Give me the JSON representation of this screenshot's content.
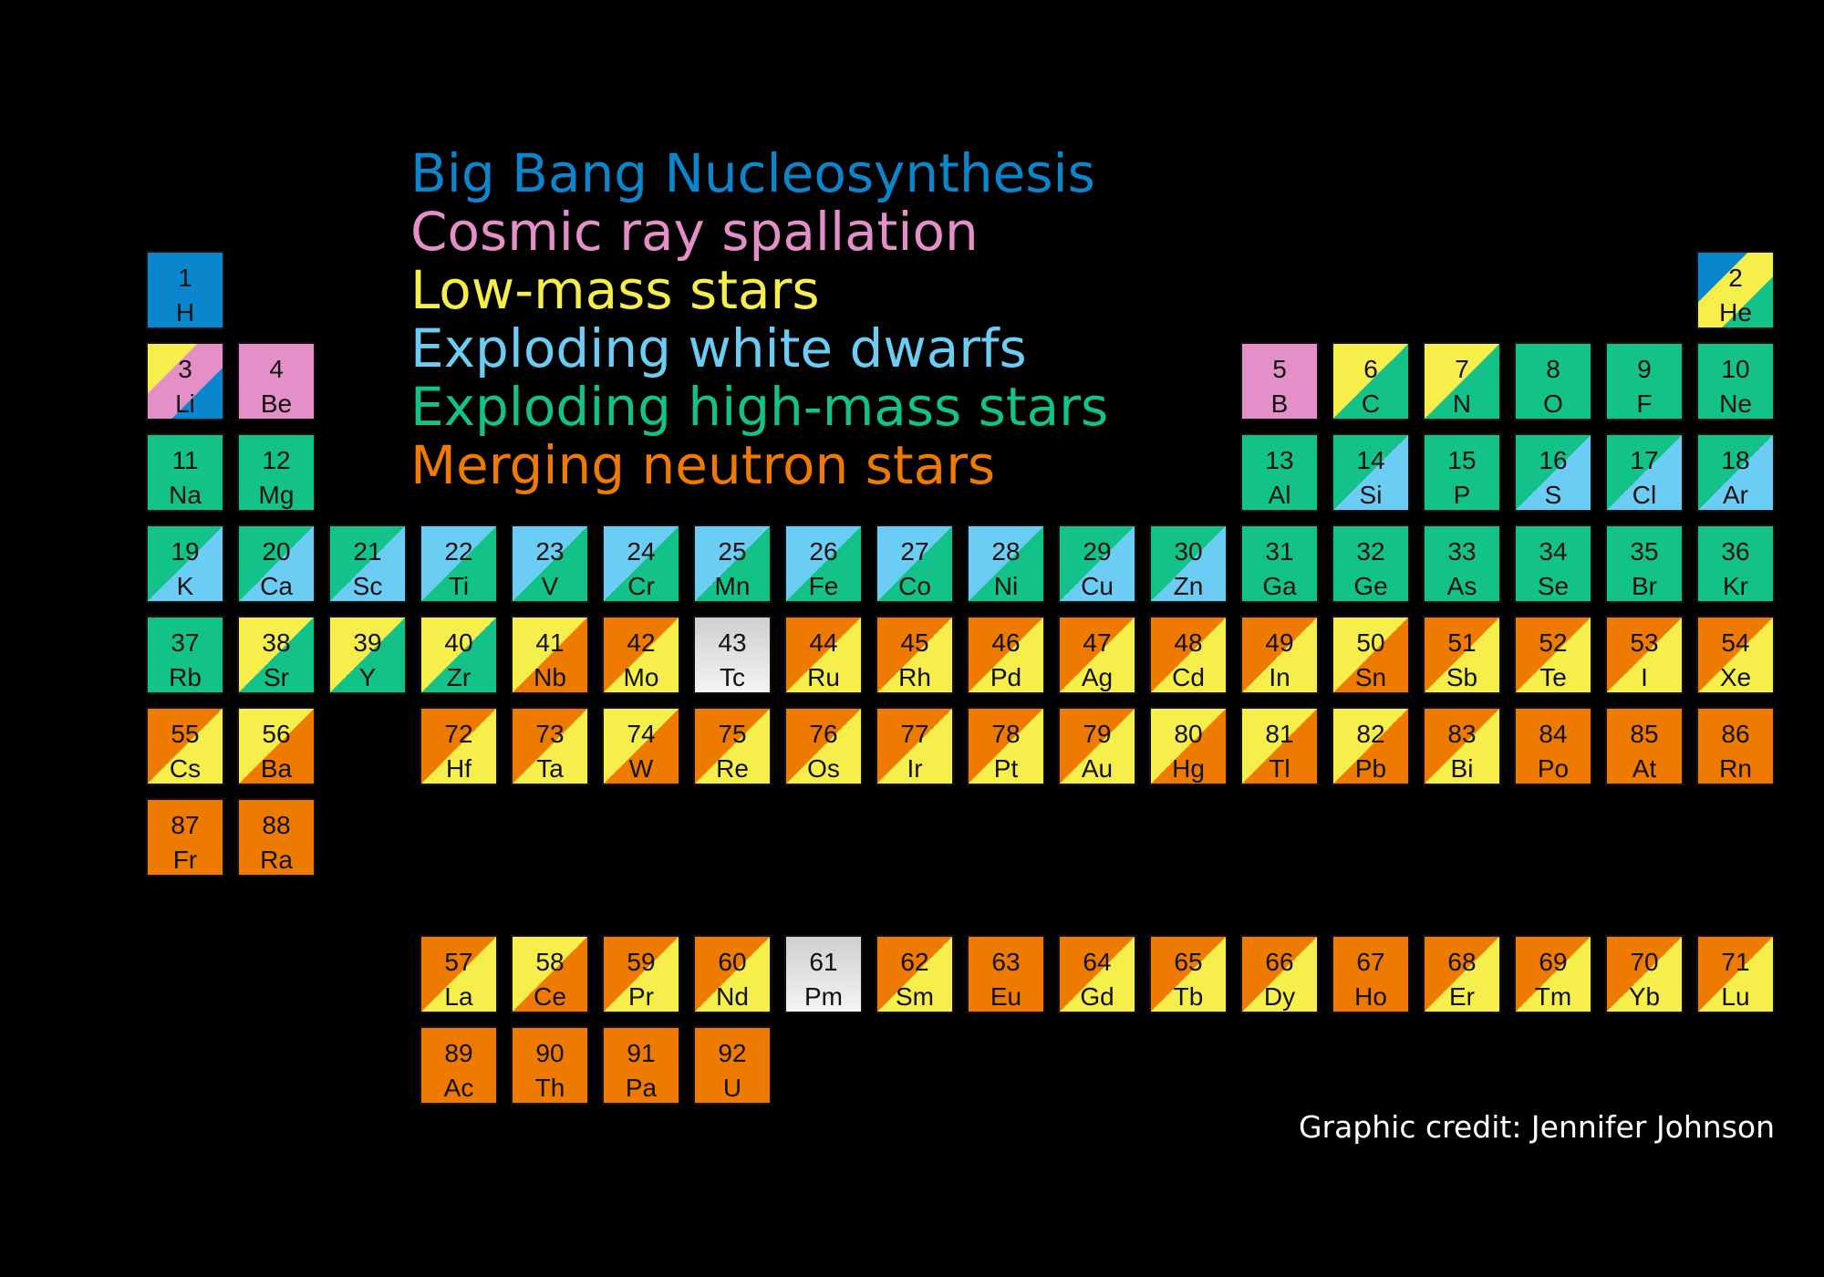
{
  "title_legend": [
    {
      "key": "bbn",
      "label": "Big Bang Nucleosynthesis",
      "color": "#0a86cc"
    },
    {
      "key": "cr",
      "label": "Cosmic ray spallation",
      "color": "#e58fc8"
    },
    {
      "key": "low",
      "label": "Low-mass stars",
      "color": "#f6ef4b"
    },
    {
      "key": "wd",
      "label": "Exploding white dwarfs",
      "color": "#6ccdf4"
    },
    {
      "key": "high",
      "label": "Exploding high-mass stars",
      "color": "#12c289"
    },
    {
      "key": "ns",
      "label": "Merging neutron stars",
      "color": "#ef7a00"
    }
  ],
  "colors": {
    "bbn": "#0a86cc",
    "cr": "#e58fc8",
    "low": "#f6ef4b",
    "wd": "#6ccdf4",
    "high": "#12c289",
    "ns": "#ef7a00",
    "none": "#d9d9d9"
  },
  "elements": [
    {
      "n": "1",
      "s": "H",
      "row": 1,
      "col": 1,
      "src": [
        "bbn"
      ]
    },
    {
      "n": "2",
      "s": "He",
      "row": 1,
      "col": 18,
      "src": [
        "bbn",
        "low",
        "high"
      ]
    },
    {
      "n": "3",
      "s": "Li",
      "row": 2,
      "col": 1,
      "src": [
        "low",
        "cr",
        "bbn"
      ]
    },
    {
      "n": "4",
      "s": "Be",
      "row": 2,
      "col": 2,
      "src": [
        "cr"
      ]
    },
    {
      "n": "5",
      "s": "B",
      "row": 2,
      "col": 13,
      "src": [
        "cr"
      ]
    },
    {
      "n": "6",
      "s": "C",
      "row": 2,
      "col": 14,
      "src": [
        "low",
        "high"
      ]
    },
    {
      "n": "7",
      "s": "N",
      "row": 2,
      "col": 15,
      "src": [
        "low",
        "high"
      ]
    },
    {
      "n": "8",
      "s": "O",
      "row": 2,
      "col": 16,
      "src": [
        "high"
      ]
    },
    {
      "n": "9",
      "s": "F",
      "row": 2,
      "col": 17,
      "src": [
        "high"
      ]
    },
    {
      "n": "10",
      "s": "Ne",
      "row": 2,
      "col": 18,
      "src": [
        "high"
      ]
    },
    {
      "n": "11",
      "s": "Na",
      "row": 3,
      "col": 1,
      "src": [
        "high"
      ]
    },
    {
      "n": "12",
      "s": "Mg",
      "row": 3,
      "col": 2,
      "src": [
        "high"
      ]
    },
    {
      "n": "13",
      "s": "Al",
      "row": 3,
      "col": 13,
      "src": [
        "high"
      ]
    },
    {
      "n": "14",
      "s": "Si",
      "row": 3,
      "col": 14,
      "src": [
        "high",
        "wd"
      ]
    },
    {
      "n": "15",
      "s": "P",
      "row": 3,
      "col": 15,
      "src": [
        "high"
      ]
    },
    {
      "n": "16",
      "s": "S",
      "row": 3,
      "col": 16,
      "src": [
        "high",
        "wd"
      ]
    },
    {
      "n": "17",
      "s": "Cl",
      "row": 3,
      "col": 17,
      "src": [
        "high",
        "wd"
      ]
    },
    {
      "n": "18",
      "s": "Ar",
      "row": 3,
      "col": 18,
      "src": [
        "high",
        "wd"
      ]
    },
    {
      "n": "19",
      "s": "K",
      "row": 4,
      "col": 1,
      "src": [
        "high",
        "wd"
      ]
    },
    {
      "n": "20",
      "s": "Ca",
      "row": 4,
      "col": 2,
      "src": [
        "high",
        "wd"
      ]
    },
    {
      "n": "21",
      "s": "Sc",
      "row": 4,
      "col": 3,
      "src": [
        "high",
        "wd"
      ]
    },
    {
      "n": "22",
      "s": "Ti",
      "row": 4,
      "col": 4,
      "src": [
        "wd",
        "high"
      ]
    },
    {
      "n": "23",
      "s": "V",
      "row": 4,
      "col": 5,
      "src": [
        "wd",
        "high"
      ]
    },
    {
      "n": "24",
      "s": "Cr",
      "row": 4,
      "col": 6,
      "src": [
        "wd",
        "high"
      ]
    },
    {
      "n": "25",
      "s": "Mn",
      "row": 4,
      "col": 7,
      "src": [
        "wd",
        "high"
      ]
    },
    {
      "n": "26",
      "s": "Fe",
      "row": 4,
      "col": 8,
      "src": [
        "wd",
        "high"
      ]
    },
    {
      "n": "27",
      "s": "Co",
      "row": 4,
      "col": 9,
      "src": [
        "wd",
        "high"
      ]
    },
    {
      "n": "28",
      "s": "Ni",
      "row": 4,
      "col": 10,
      "src": [
        "wd",
        "high"
      ]
    },
    {
      "n": "29",
      "s": "Cu",
      "row": 4,
      "col": 11,
      "src": [
        "high",
        "wd"
      ]
    },
    {
      "n": "30",
      "s": "Zn",
      "row": 4,
      "col": 12,
      "src": [
        "high",
        "wd"
      ]
    },
    {
      "n": "31",
      "s": "Ga",
      "row": 4,
      "col": 13,
      "src": [
        "high"
      ]
    },
    {
      "n": "32",
      "s": "Ge",
      "row": 4,
      "col": 14,
      "src": [
        "high"
      ]
    },
    {
      "n": "33",
      "s": "As",
      "row": 4,
      "col": 15,
      "src": [
        "high"
      ]
    },
    {
      "n": "34",
      "s": "Se",
      "row": 4,
      "col": 16,
      "src": [
        "high"
      ]
    },
    {
      "n": "35",
      "s": "Br",
      "row": 4,
      "col": 17,
      "src": [
        "high"
      ]
    },
    {
      "n": "36",
      "s": "Kr",
      "row": 4,
      "col": 18,
      "src": [
        "high"
      ]
    },
    {
      "n": "37",
      "s": "Rb",
      "row": 5,
      "col": 1,
      "src": [
        "high"
      ]
    },
    {
      "n": "38",
      "s": "Sr",
      "row": 5,
      "col": 2,
      "src": [
        "low",
        "high"
      ]
    },
    {
      "n": "39",
      "s": "Y",
      "row": 5,
      "col": 3,
      "src": [
        "low",
        "high"
      ]
    },
    {
      "n": "40",
      "s": "Zr",
      "row": 5,
      "col": 4,
      "src": [
        "low",
        "high"
      ]
    },
    {
      "n": "41",
      "s": "Nb",
      "row": 5,
      "col": 5,
      "src": [
        "low",
        "ns"
      ]
    },
    {
      "n": "42",
      "s": "Mo",
      "row": 5,
      "col": 6,
      "src": [
        "ns",
        "low"
      ]
    },
    {
      "n": "43",
      "s": "Tc",
      "row": 5,
      "col": 7,
      "src": [
        "none"
      ]
    },
    {
      "n": "44",
      "s": "Ru",
      "row": 5,
      "col": 8,
      "src": [
        "ns",
        "low"
      ]
    },
    {
      "n": "45",
      "s": "Rh",
      "row": 5,
      "col": 9,
      "src": [
        "ns",
        "low"
      ]
    },
    {
      "n": "46",
      "s": "Pd",
      "row": 5,
      "col": 10,
      "src": [
        "ns",
        "low"
      ]
    },
    {
      "n": "47",
      "s": "Ag",
      "row": 5,
      "col": 11,
      "src": [
        "ns",
        "low"
      ]
    },
    {
      "n": "48",
      "s": "Cd",
      "row": 5,
      "col": 12,
      "src": [
        "ns",
        "low"
      ]
    },
    {
      "n": "49",
      "s": "In",
      "row": 5,
      "col": 13,
      "src": [
        "ns",
        "low"
      ]
    },
    {
      "n": "50",
      "s": "Sn",
      "row": 5,
      "col": 14,
      "src": [
        "low",
        "ns"
      ]
    },
    {
      "n": "51",
      "s": "Sb",
      "row": 5,
      "col": 15,
      "src": [
        "ns",
        "low"
      ]
    },
    {
      "n": "52",
      "s": "Te",
      "row": 5,
      "col": 16,
      "src": [
        "ns",
        "low"
      ]
    },
    {
      "n": "53",
      "s": "I",
      "row": 5,
      "col": 17,
      "src": [
        "ns",
        "low"
      ]
    },
    {
      "n": "54",
      "s": "Xe",
      "row": 5,
      "col": 18,
      "src": [
        "ns",
        "low"
      ]
    },
    {
      "n": "55",
      "s": "Cs",
      "row": 6,
      "col": 1,
      "src": [
        "ns",
        "low"
      ]
    },
    {
      "n": "56",
      "s": "Ba",
      "row": 6,
      "col": 2,
      "src": [
        "low",
        "ns"
      ]
    },
    {
      "n": "72",
      "s": "Hf",
      "row": 6,
      "col": 4,
      "src": [
        "ns",
        "low"
      ]
    },
    {
      "n": "73",
      "s": "Ta",
      "row": 6,
      "col": 5,
      "src": [
        "ns",
        "low"
      ]
    },
    {
      "n": "74",
      "s": "W",
      "row": 6,
      "col": 6,
      "src": [
        "low",
        "ns"
      ]
    },
    {
      "n": "75",
      "s": "Re",
      "row": 6,
      "col": 7,
      "src": [
        "ns",
        "low"
      ]
    },
    {
      "n": "76",
      "s": "Os",
      "row": 6,
      "col": 8,
      "src": [
        "ns",
        "low"
      ]
    },
    {
      "n": "77",
      "s": "Ir",
      "row": 6,
      "col": 9,
      "src": [
        "ns",
        "low"
      ]
    },
    {
      "n": "78",
      "s": "Pt",
      "row": 6,
      "col": 10,
      "src": [
        "ns",
        "low"
      ]
    },
    {
      "n": "79",
      "s": "Au",
      "row": 6,
      "col": 11,
      "src": [
        "ns",
        "low"
      ]
    },
    {
      "n": "80",
      "s": "Hg",
      "row": 6,
      "col": 12,
      "src": [
        "low",
        "ns"
      ]
    },
    {
      "n": "81",
      "s": "Tl",
      "row": 6,
      "col": 13,
      "src": [
        "low",
        "ns"
      ]
    },
    {
      "n": "82",
      "s": "Pb",
      "row": 6,
      "col": 14,
      "src": [
        "low",
        "ns"
      ]
    },
    {
      "n": "83",
      "s": "Bi",
      "row": 6,
      "col": 15,
      "src": [
        "ns",
        "low"
      ]
    },
    {
      "n": "84",
      "s": "Po",
      "row": 6,
      "col": 16,
      "src": [
        "ns"
      ]
    },
    {
      "n": "85",
      "s": "At",
      "row": 6,
      "col": 17,
      "src": [
        "ns"
      ]
    },
    {
      "n": "86",
      "s": "Rn",
      "row": 6,
      "col": 18,
      "src": [
        "ns"
      ]
    },
    {
      "n": "87",
      "s": "Fr",
      "row": 7,
      "col": 1,
      "src": [
        "ns"
      ]
    },
    {
      "n": "88",
      "s": "Ra",
      "row": 7,
      "col": 2,
      "src": [
        "ns"
      ]
    },
    {
      "n": "57",
      "s": "La",
      "row": 8,
      "col": 4,
      "src": [
        "ns",
        "low"
      ]
    },
    {
      "n": "58",
      "s": "Ce",
      "row": 8,
      "col": 5,
      "src": [
        "low",
        "ns"
      ]
    },
    {
      "n": "59",
      "s": "Pr",
      "row": 8,
      "col": 6,
      "src": [
        "ns",
        "low"
      ]
    },
    {
      "n": "60",
      "s": "Nd",
      "row": 8,
      "col": 7,
      "src": [
        "ns",
        "low"
      ]
    },
    {
      "n": "61",
      "s": "Pm",
      "row": 8,
      "col": 8,
      "src": [
        "none"
      ]
    },
    {
      "n": "62",
      "s": "Sm",
      "row": 8,
      "col": 9,
      "src": [
        "ns",
        "low"
      ]
    },
    {
      "n": "63",
      "s": "Eu",
      "row": 8,
      "col": 10,
      "src": [
        "ns"
      ]
    },
    {
      "n": "64",
      "s": "Gd",
      "row": 8,
      "col": 11,
      "src": [
        "ns",
        "low"
      ]
    },
    {
      "n": "65",
      "s": "Tb",
      "row": 8,
      "col": 12,
      "src": [
        "ns",
        "low"
      ]
    },
    {
      "n": "66",
      "s": "Dy",
      "row": 8,
      "col": 13,
      "src": [
        "ns",
        "low"
      ]
    },
    {
      "n": "67",
      "s": "Ho",
      "row": 8,
      "col": 14,
      "src": [
        "ns"
      ]
    },
    {
      "n": "68",
      "s": "Er",
      "row": 8,
      "col": 15,
      "src": [
        "ns",
        "low"
      ]
    },
    {
      "n": "69",
      "s": "Tm",
      "row": 8,
      "col": 16,
      "src": [
        "ns",
        "low"
      ]
    },
    {
      "n": "70",
      "s": "Yb",
      "row": 8,
      "col": 17,
      "src": [
        "ns",
        "low"
      ]
    },
    {
      "n": "71",
      "s": "Lu",
      "row": 8,
      "col": 18,
      "src": [
        "ns",
        "low"
      ]
    },
    {
      "n": "89",
      "s": "Ac",
      "row": 9,
      "col": 4,
      "src": [
        "ns"
      ]
    },
    {
      "n": "90",
      "s": "Th",
      "row": 9,
      "col": 5,
      "src": [
        "ns"
      ]
    },
    {
      "n": "91",
      "s": "Pa",
      "row": 9,
      "col": 6,
      "src": [
        "ns"
      ]
    },
    {
      "n": "92",
      "s": "U",
      "row": 9,
      "col": 7,
      "src": [
        "ns"
      ]
    }
  ],
  "credit": "Graphic credit: Jennifer Johnson"
}
